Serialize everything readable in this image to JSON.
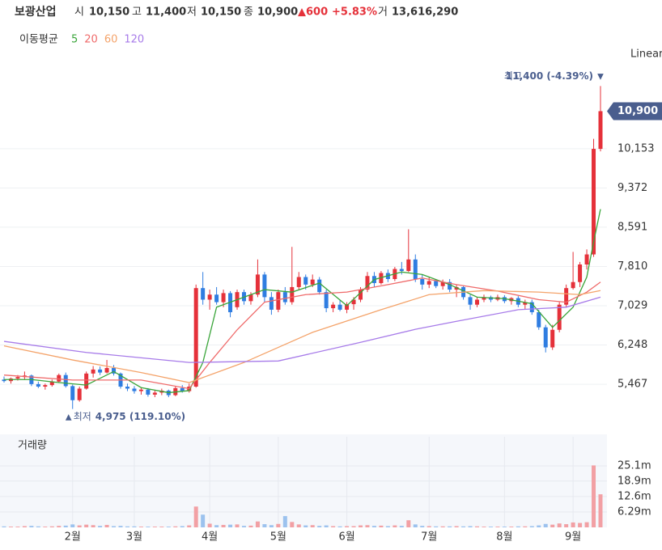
{
  "header": {
    "name": "보광산업",
    "open_label": "시",
    "open": "10,150",
    "high_label": "고",
    "high": "11,400",
    "low_label": "저",
    "low": "10,150",
    "close_label": "종",
    "close": "10,900",
    "change": "▲600",
    "change_pct": "+5.83%",
    "volume_label": "거",
    "volume": "13,616,290",
    "ma_label": "이동평균"
  },
  "chart_data": {
    "type": "candlestick",
    "scale_label": "Linear",
    "volume_title": "거래량",
    "up_color": "#e5313a",
    "down_color": "#2f7de1",
    "vol_up_color": "#f2a0a4",
    "vol_down_color": "#9cc2ee",
    "ylim": [
      4583,
      11744
    ],
    "yticks": [
      {
        "value": 5467,
        "label": "5,467"
      },
      {
        "value": 6248,
        "label": "6,248"
      },
      {
        "value": 7029,
        "label": "7,029"
      },
      {
        "value": 7810,
        "label": "7,810"
      },
      {
        "value": 8591,
        "label": "8,591"
      },
      {
        "value": 9372,
        "label": "9,372"
      },
      {
        "value": 10153,
        "label": "10,153"
      }
    ],
    "vylim": [
      0,
      37
    ],
    "vyticks": [
      {
        "value": 6.29,
        "label": "6.29m"
      },
      {
        "value": 12.6,
        "label": "12.6m"
      },
      {
        "value": 18.9,
        "label": "18.9m"
      },
      {
        "value": 25.1,
        "label": "25.1m"
      }
    ],
    "xticks": [
      {
        "value": 10,
        "label": "2월"
      },
      {
        "value": 19,
        "label": "3월"
      },
      {
        "value": 30,
        "label": "4월"
      },
      {
        "value": 40,
        "label": "5월"
      },
      {
        "value": 50,
        "label": "6월"
      },
      {
        "value": 62,
        "label": "7월"
      },
      {
        "value": 73,
        "label": "8월"
      },
      {
        "value": 83,
        "label": "9월"
      }
    ],
    "last_price": {
      "value": 10900,
      "label": "10,900"
    },
    "max_annotation": {
      "index": 87,
      "label": "최고",
      "value": "11,400 (-4.39%)",
      "marker": "▼"
    },
    "min_annotation": {
      "index": 10,
      "label": "최저",
      "value": "4,975 (119.10%)",
      "marker": "▲"
    },
    "open": [
      5560,
      5530,
      5580,
      5610,
      5640,
      5470,
      5420,
      5450,
      5520,
      5650,
      5430,
      5150,
      5380,
      5680,
      5760,
      5700,
      5790,
      5680,
      5420,
      5380,
      5330,
      5360,
      5260,
      5300,
      5340,
      5250,
      5390,
      5330,
      5420,
      7380,
      7150,
      7250,
      7100,
      7280,
      7000,
      7300,
      7120,
      7250,
      7650,
      7200,
      6950,
      7300,
      7100,
      7400,
      7600,
      7450,
      7550,
      7300,
      6980,
      7050,
      6950,
      7060,
      7150,
      7350,
      7620,
      7480,
      7680,
      7560,
      7760,
      7720,
      7950,
      7560,
      7450,
      7520,
      7420,
      7500,
      7350,
      7400,
      7200,
      7050,
      7150,
      7200,
      7150,
      7200,
      7120,
      7180,
      7050,
      7100,
      6900,
      6600,
      6200,
      6550,
      7050,
      7380,
      7500,
      7850,
      8050,
      10150
    ],
    "high": [
      5620,
      5600,
      5650,
      5720,
      5660,
      5520,
      5480,
      5560,
      5680,
      5700,
      5460,
      5420,
      5720,
      5830,
      5820,
      5950,
      5850,
      5700,
      5480,
      5430,
      5400,
      5390,
      5340,
      5380,
      5360,
      5420,
      5450,
      5480,
      7450,
      7700,
      7350,
      7400,
      7350,
      7320,
      7350,
      7350,
      7300,
      7950,
      7700,
      7300,
      7350,
      7400,
      8200,
      7700,
      7650,
      7650,
      7600,
      7350,
      7100,
      7150,
      7100,
      7200,
      7400,
      7700,
      7700,
      7720,
      7750,
      7800,
      7900,
      8550,
      8050,
      7650,
      7600,
      7560,
      7550,
      7560,
      7450,
      7420,
      7250,
      7200,
      7250,
      7230,
      7250,
      7240,
      7200,
      7220,
      7150,
      7150,
      6950,
      6650,
      6650,
      7100,
      7450,
      8100,
      7900,
      8150,
      10350,
      11400
    ],
    "low": [
      5500,
      5480,
      5540,
      5560,
      5430,
      5390,
      5360,
      5420,
      5500,
      5400,
      4975,
      5120,
      5360,
      5600,
      5650,
      5680,
      5640,
      5380,
      5330,
      5280,
      5260,
      5220,
      5210,
      5250,
      5210,
      5230,
      5300,
      5300,
      5400,
      7050,
      6950,
      7050,
      7000,
      6800,
      6950,
      7050,
      7050,
      7200,
      7100,
      6850,
      6900,
      7050,
      7050,
      7350,
      7350,
      7400,
      7250,
      6900,
      6900,
      6920,
      6880,
      6950,
      7100,
      7300,
      7400,
      7450,
      7500,
      7520,
      7650,
      7700,
      7500,
      7350,
      7380,
      7380,
      7350,
      7300,
      7200,
      7150,
      6950,
      7000,
      7100,
      7100,
      7120,
      7080,
      7050,
      7000,
      6950,
      6850,
      6550,
      6100,
      6150,
      6500,
      7000,
      7350,
      7400,
      7750,
      8000,
      10100
    ],
    "close": [
      5530,
      5580,
      5610,
      5640,
      5470,
      5420,
      5450,
      5520,
      5650,
      5430,
      5150,
      5380,
      5680,
      5760,
      5700,
      5790,
      5680,
      5420,
      5380,
      5330,
      5360,
      5260,
      5300,
      5340,
      5250,
      5390,
      5330,
      5420,
      7380,
      7150,
      7250,
      7100,
      7280,
      6900,
      7300,
      7120,
      7250,
      7650,
      7200,
      6950,
      7300,
      7100,
      7400,
      7600,
      7450,
      7550,
      7300,
      6980,
      7050,
      6950,
      7060,
      7150,
      7350,
      7620,
      7480,
      7680,
      7560,
      7760,
      7720,
      7950,
      7560,
      7450,
      7520,
      7420,
      7500,
      7350,
      7400,
      7200,
      7050,
      7150,
      7200,
      7150,
      7200,
      7120,
      7180,
      7050,
      7100,
      6900,
      6600,
      6200,
      6550,
      7050,
      7380,
      7500,
      7850,
      8050,
      10150,
      10900
    ],
    "volume": [
      0.4,
      0.3,
      0.3,
      0.5,
      0.6,
      0.4,
      0.3,
      0.4,
      0.6,
      0.7,
      1.2,
      0.8,
      1.1,
      0.9,
      0.6,
      1.0,
      0.5,
      0.6,
      0.4,
      0.4,
      0.3,
      0.3,
      0.3,
      0.3,
      0.3,
      0.4,
      0.5,
      0.8,
      8.5,
      5.2,
      1.5,
      0.9,
      1.0,
      1.1,
      1.2,
      0.6,
      0.7,
      2.4,
      1.3,
      0.9,
      1.4,
      4.6,
      2.2,
      1.2,
      0.8,
      0.9,
      0.6,
      0.8,
      0.5,
      0.4,
      0.5,
      0.5,
      0.8,
      0.9,
      0.6,
      0.7,
      0.5,
      0.8,
      0.6,
      2.9,
      1.2,
      0.6,
      0.5,
      0.4,
      0.4,
      0.4,
      0.5,
      0.4,
      0.5,
      0.4,
      0.3,
      0.3,
      0.3,
      0.3,
      0.3,
      0.4,
      0.4,
      0.5,
      0.8,
      1.4,
      1.1,
      1.6,
      1.3,
      2.0,
      1.8,
      2.1,
      25.3,
      13.5
    ],
    "series": [
      {
        "name": "5",
        "color": "#3aa53a",
        "x": [
          0,
          4,
          8,
          12,
          16,
          20,
          24,
          27,
          29,
          31,
          34,
          38,
          42,
          46,
          50,
          54,
          58,
          61,
          65,
          69,
          73,
          77,
          80,
          83,
          85,
          86,
          87
        ],
        "values": [
          5560,
          5560,
          5500,
          5450,
          5720,
          5400,
          5300,
          5340,
          5900,
          7000,
          7150,
          7350,
          7300,
          7480,
          7030,
          7550,
          7700,
          7650,
          7450,
          7200,
          7170,
          7070,
          6600,
          7000,
          7600,
          8300,
          8950
        ]
      },
      {
        "name": "20",
        "color": "#ef6a6a",
        "x": [
          0,
          10,
          20,
          27,
          30,
          34,
          38,
          44,
          50,
          56,
          61,
          66,
          72,
          78,
          82,
          85,
          87
        ],
        "values": [
          5650,
          5550,
          5550,
          5380,
          5900,
          6550,
          7100,
          7250,
          7300,
          7450,
          7580,
          7450,
          7320,
          7150,
          7100,
          7300,
          7500
        ]
      },
      {
        "name": "60",
        "color": "#f4a36a",
        "x": [
          0,
          10,
          20,
          27,
          35,
          45,
          55,
          62,
          70,
          78,
          84,
          87
        ],
        "values": [
          6230,
          5950,
          5700,
          5500,
          5900,
          6500,
          6950,
          7250,
          7330,
          7300,
          7250,
          7330
        ]
      },
      {
        "name": "120",
        "color": "#a77be9",
        "x": [
          0,
          12,
          27,
          40,
          52,
          60,
          66,
          75,
          82,
          87
        ],
        "values": [
          6320,
          6100,
          5900,
          5930,
          6300,
          6560,
          6720,
          6950,
          7000,
          7200
        ]
      }
    ]
  }
}
